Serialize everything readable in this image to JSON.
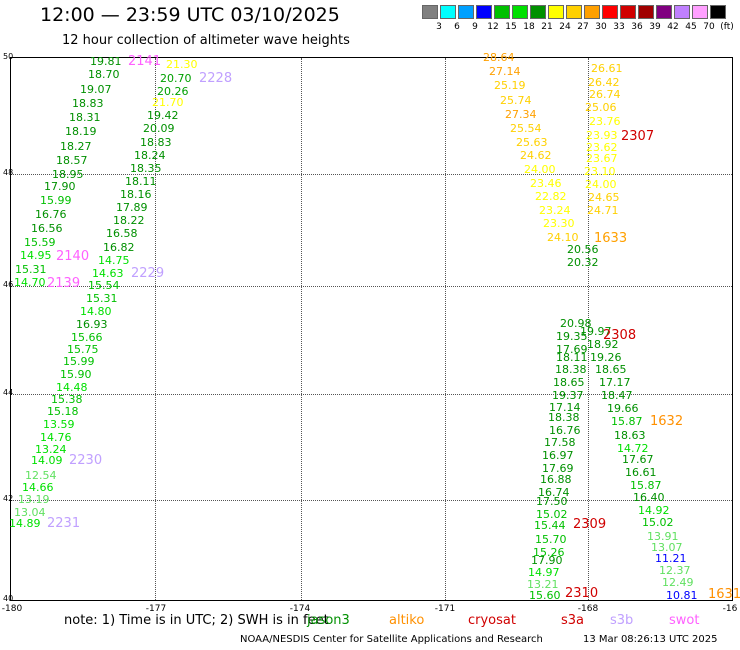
{
  "header": {
    "title": "12:00 — 23:59 UTC 03/10/2025",
    "subtitle": "12 hour collection of altimeter wave heights"
  },
  "colorbar": {
    "colors": [
      "#808080",
      "#00ffff",
      "#00a0ff",
      "#0000ff",
      "#00c000",
      "#00e000",
      "#009000",
      "#ffff00",
      "#ffd000",
      "#ffa000",
      "#ff0000",
      "#d00000",
      "#a00000",
      "#800080",
      "#c080ff",
      "#ffa0ff",
      "#000000"
    ],
    "labels": [
      "3",
      "6",
      "9",
      "12",
      "15",
      "18",
      "21",
      "24",
      "27",
      "30",
      "33",
      "36",
      "39",
      "42",
      "45",
      "70",
      "(ft)"
    ]
  },
  "map": {
    "lat_labels": [
      "50",
      "48",
      "46",
      "44",
      "42",
      "40"
    ],
    "lon_labels": [
      "-180",
      "-177",
      "-174",
      "-171",
      "-168",
      "-16"
    ]
  },
  "observations": [
    {
      "text": "19.81",
      "color": "#009000"
    },
    {
      "text": "18.70",
      "color": "#009000"
    },
    {
      "text": "19.07",
      "color": "#009000"
    },
    {
      "text": "18.83",
      "color": "#009000"
    },
    {
      "text": "18.31",
      "color": "#009000"
    },
    {
      "text": "18.19",
      "color": "#009000"
    },
    {
      "text": "18.27",
      "color": "#009000"
    },
    {
      "text": "18.57",
      "color": "#009000"
    },
    {
      "text": "18.95",
      "color": "#009000"
    },
    {
      "text": "17.90",
      "color": "#009000"
    },
    {
      "text": "15.99",
      "color": "#00c000"
    },
    {
      "text": "16.76",
      "color": "#009000"
    },
    {
      "text": "16.56",
      "color": "#009000"
    },
    {
      "text": "15.59",
      "color": "#00c000"
    },
    {
      "text": "14.95",
      "color": "#00e000"
    },
    {
      "text": "15.31",
      "color": "#00c000"
    },
    {
      "text": "14.70",
      "color": "#00e000"
    },
    {
      "text": "21.30",
      "color": "#ffff00"
    },
    {
      "text": "20.70",
      "color": "#00a000"
    },
    {
      "text": "20.26",
      "color": "#00a000"
    },
    {
      "text": "21.70",
      "color": "#ffff00"
    },
    {
      "text": "19.42",
      "color": "#009000"
    },
    {
      "text": "20.09",
      "color": "#009000"
    },
    {
      "text": "18.83",
      "color": "#009000"
    },
    {
      "text": "18.24",
      "color": "#009000"
    },
    {
      "text": "18.35",
      "color": "#009000"
    },
    {
      "text": "18.11",
      "color": "#009000"
    },
    {
      "text": "18.16",
      "color": "#009000"
    },
    {
      "text": "17.89",
      "color": "#009000"
    },
    {
      "text": "18.22",
      "color": "#009000"
    },
    {
      "text": "16.58",
      "color": "#009000"
    },
    {
      "text": "16.82",
      "color": "#009000"
    },
    {
      "text": "14.75",
      "color": "#00e000"
    },
    {
      "text": "14.63",
      "color": "#00e000"
    },
    {
      "text": "15.54",
      "color": "#00c000"
    },
    {
      "text": "15.31",
      "color": "#00c000"
    },
    {
      "text": "14.80",
      "color": "#00e000"
    },
    {
      "text": "16.93",
      "color": "#009000"
    },
    {
      "text": "15.66",
      "color": "#00c000"
    },
    {
      "text": "15.75",
      "color": "#00c000"
    },
    {
      "text": "15.99",
      "color": "#00c000"
    },
    {
      "text": "15.90",
      "color": "#00c000"
    },
    {
      "text": "14.48",
      "color": "#00e000"
    },
    {
      "text": "15.38",
      "color": "#00c000"
    },
    {
      "text": "15.18",
      "color": "#00c000"
    },
    {
      "text": "13.59",
      "color": "#00e000"
    },
    {
      "text": "14.76",
      "color": "#00e000"
    },
    {
      "text": "13.24",
      "color": "#00e000"
    },
    {
      "text": "14.09",
      "color": "#00e000"
    },
    {
      "text": "12.54",
      "color": "#60e060"
    },
    {
      "text": "14.66",
      "color": "#00e000"
    },
    {
      "text": "13.19",
      "color": "#60e060"
    },
    {
      "text": "13.04",
      "color": "#60e060"
    },
    {
      "text": "14.89",
      "color": "#00e000"
    },
    {
      "text": "28.64",
      "color": "#ffa000"
    },
    {
      "text": "27.14",
      "color": "#ffa000"
    },
    {
      "text": "25.19",
      "color": "#ffd000"
    },
    {
      "text": "25.74",
      "color": "#ffd000"
    },
    {
      "text": "27.34",
      "color": "#ffa000"
    },
    {
      "text": "25.54",
      "color": "#ffd000"
    },
    {
      "text": "25.63",
      "color": "#ffd000"
    },
    {
      "text": "24.62",
      "color": "#ffd000"
    },
    {
      "text": "24.00",
      "color": "#ffff00"
    },
    {
      "text": "23.46",
      "color": "#ffff00"
    },
    {
      "text": "22.82",
      "color": "#ffff00"
    },
    {
      "text": "23.24",
      "color": "#ffff00"
    },
    {
      "text": "23.30",
      "color": "#ffff00"
    },
    {
      "text": "24.10",
      "color": "#ffd000"
    },
    {
      "text": "26.61",
      "color": "#ffd000"
    },
    {
      "text": "26.42",
      "color": "#ffd000"
    },
    {
      "text": "26.74",
      "color": "#ffd000"
    },
    {
      "text": "25.06",
      "color": "#ffd000"
    },
    {
      "text": "23.76",
      "color": "#ffff00"
    },
    {
      "text": "23.93",
      "color": "#ffff00"
    },
    {
      "text": "23.62",
      "color": "#ffff00"
    },
    {
      "text": "23.67",
      "color": "#ffff00"
    },
    {
      "text": "23.10",
      "color": "#ffff00"
    },
    {
      "text": "24.00",
      "color": "#ffff00"
    },
    {
      "text": "24.65",
      "color": "#ffd000"
    },
    {
      "text": "24.71",
      "color": "#ffd000"
    },
    {
      "text": "20.56",
      "color": "#009000"
    },
    {
      "text": "20.32",
      "color": "#009000"
    },
    {
      "text": "20.98",
      "color": "#009000"
    },
    {
      "text": "19.35",
      "color": "#009000"
    },
    {
      "text": "17.69",
      "color": "#009000"
    },
    {
      "text": "18.11",
      "color": "#009000"
    },
    {
      "text": "18.38",
      "color": "#009000"
    },
    {
      "text": "18.65",
      "color": "#009000"
    },
    {
      "text": "19.37",
      "color": "#009000"
    },
    {
      "text": "17.14",
      "color": "#009000"
    },
    {
      "text": "18.38",
      "color": "#009000"
    },
    {
      "text": "16.76",
      "color": "#009000"
    },
    {
      "text": "17.58",
      "color": "#009000"
    },
    {
      "text": "16.97",
      "color": "#009000"
    },
    {
      "text": "17.69",
      "color": "#009000"
    },
    {
      "text": "16.88",
      "color": "#009000"
    },
    {
      "text": "16.74",
      "color": "#009000"
    },
    {
      "text": "17.50",
      "color": "#009000"
    },
    {
      "text": "15.02",
      "color": "#00c000"
    },
    {
      "text": "15.44",
      "color": "#00c000"
    },
    {
      "text": "15.70",
      "color": "#00c000"
    },
    {
      "text": "15.26",
      "color": "#00c000"
    },
    {
      "text": "17.90",
      "color": "#009000"
    },
    {
      "text": "14.97",
      "color": "#00e000"
    },
    {
      "text": "13.21",
      "color": "#60e060"
    },
    {
      "text": "15.60",
      "color": "#00c000"
    },
    {
      "text": "19.97",
      "color": "#009000"
    },
    {
      "text": "18.92",
      "color": "#009000"
    },
    {
      "text": "19.26",
      "color": "#009000"
    },
    {
      "text": "18.65",
      "color": "#009000"
    },
    {
      "text": "17.17",
      "color": "#009000"
    },
    {
      "text": "18.47",
      "color": "#009000"
    },
    {
      "text": "19.66",
      "color": "#009000"
    },
    {
      "text": "15.87",
      "color": "#00c000"
    },
    {
      "text": "18.63",
      "color": "#009000"
    },
    {
      "text": "14.72",
      "color": "#00e000"
    },
    {
      "text": "17.67",
      "color": "#009000"
    },
    {
      "text": "16.61",
      "color": "#009000"
    },
    {
      "text": "15.87",
      "color": "#00c000"
    },
    {
      "text": "16.40",
      "color": "#009000"
    },
    {
      "text": "14.92",
      "color": "#00e000"
    },
    {
      "text": "15.02",
      "color": "#00c000"
    },
    {
      "text": "13.91",
      "color": "#60e060"
    },
    {
      "text": "13.07",
      "color": "#60e060"
    },
    {
      "text": "11.21",
      "color": "#0000ff"
    },
    {
      "text": "12.37",
      "color": "#60e060"
    },
    {
      "text": "12.49",
      "color": "#60e060"
    },
    {
      "text": "10.81",
      "color": "#0000ff"
    }
  ],
  "time_tags": [
    {
      "text": "2141",
      "color": "#ff60ff"
    },
    {
      "text": "2228",
      "color": "#c0a0ff"
    },
    {
      "text": "2140",
      "color": "#ff60ff"
    },
    {
      "text": "2139",
      "color": "#ff60ff"
    },
    {
      "text": "2229",
      "color": "#c0a0ff"
    },
    {
      "text": "2230",
      "color": "#c0a0ff"
    },
    {
      "text": "2231",
      "color": "#c0a0ff"
    },
    {
      "text": "2307",
      "color": "#d00000"
    },
    {
      "text": "1633",
      "color": "#ffa000"
    },
    {
      "text": "2308",
      "color": "#d00000"
    },
    {
      "text": "1632",
      "color": "#ff9000"
    },
    {
      "text": "2309",
      "color": "#d00000"
    },
    {
      "text": "2310",
      "color": "#d00000"
    },
    {
      "text": "1631",
      "color": "#ff9000"
    }
  ],
  "footer": {
    "note": "note: 1) Time is in UTC; 2) SWH is in feet",
    "missions": [
      {
        "text": "jason3",
        "color": "#009000"
      },
      {
        "text": "altiko",
        "color": "#ff9000"
      },
      {
        "text": "cryosat",
        "color": "#d00000"
      },
      {
        "text": "s3a",
        "color": "#d00000"
      },
      {
        "text": "s3b",
        "color": "#c0a0ff"
      },
      {
        "text": "swot",
        "color": "#ff60ff"
      }
    ],
    "credit": "NOAA/NESDIS Center for Satellite Applications and Research",
    "timestamp": "13 Mar 08:26:13 UTC 2025"
  }
}
